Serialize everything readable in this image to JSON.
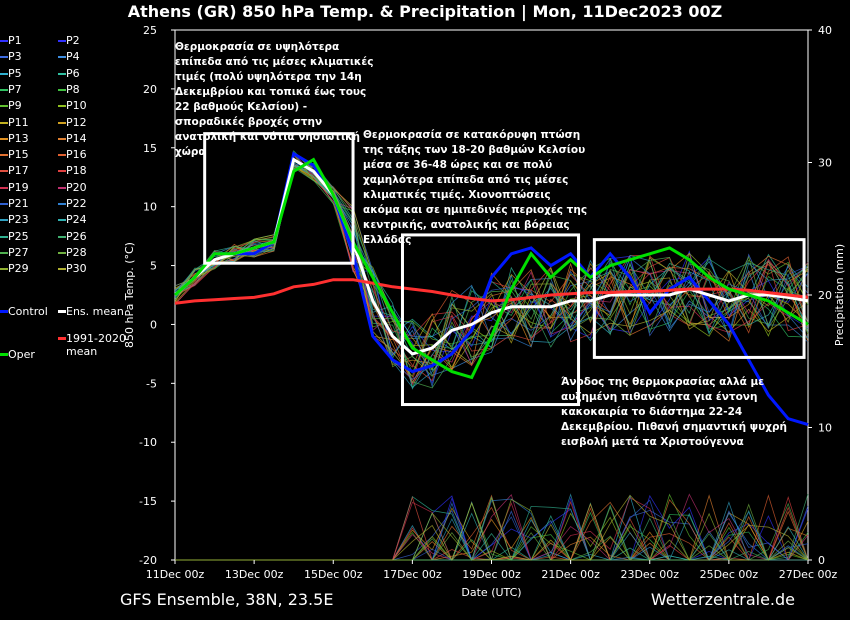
{
  "title": "Athens  (GR)  850 hPa Temp. & Precipitation | Mon, 11Dec2023 00Z",
  "footer_left": "GFS Ensemble, 38N, 23.5E",
  "footer_right": "Wetterzentrale.de",
  "chart_data": {
    "type": "line",
    "xlabel": "Date (UTC)",
    "ylabel": "850 hPa Temp. (°C)",
    "ylabel_right": "Precipitation (mm)",
    "x_ticks": [
      "11Dec 00z",
      "13Dec 00z",
      "15Dec 00z",
      "17Dec 00z",
      "19Dec 00z",
      "21Dec 00z",
      "23Dec 00z",
      "25Dec 00z",
      "27Dec 00z"
    ],
    "x_range_days": [
      0,
      16
    ],
    "ylim": [
      -20,
      25
    ],
    "y_ticks": [
      -20,
      -15,
      -10,
      -5,
      0,
      5,
      10,
      15,
      20,
      25
    ],
    "y2lim": [
      0,
      40
    ],
    "y2_ticks": [
      0,
      10,
      20,
      30,
      40
    ],
    "x_days": [
      0,
      0.5,
      1,
      1.5,
      2,
      2.5,
      3,
      3.5,
      4,
      4.5,
      5,
      5.5,
      6,
      6.5,
      7,
      7.5,
      8,
      8.5,
      9,
      9.5,
      10,
      10.5,
      11,
      11.5,
      12,
      12.5,
      13,
      13.5,
      14,
      14.5,
      15,
      15.5,
      16
    ],
    "series": [
      {
        "name": "Control",
        "color": "#0018ff",
        "values": [
          2.5,
          4,
          6,
          6,
          6,
          7,
          14.5,
          13.5,
          11,
          6,
          -1,
          -3,
          -4,
          -3.5,
          -2.5,
          -0.5,
          4,
          6,
          6.5,
          5,
          6,
          4,
          6,
          4,
          1,
          3,
          4,
          2,
          0,
          -3,
          -6,
          -8,
          -8.5
        ]
      },
      {
        "name": "Ens. mean",
        "color": "#ffffff",
        "values": [
          2.5,
          4,
          5.5,
          6,
          6.5,
          7,
          14,
          13,
          11,
          7,
          2,
          -1,
          -2.5,
          -2,
          -0.5,
          0,
          1,
          1.5,
          1.5,
          1.5,
          2,
          2,
          2.5,
          2.5,
          2.5,
          2.5,
          3,
          2.5,
          2,
          2.5,
          2.5,
          2.3,
          2
        ]
      },
      {
        "name": "1991-2020 mean",
        "color": "#ff3030",
        "values": [
          1.8,
          2,
          2.1,
          2.2,
          2.3,
          2.6,
          3.2,
          3.4,
          3.8,
          3.8,
          3.5,
          3.2,
          3,
          2.8,
          2.5,
          2.2,
          2,
          2.1,
          2.3,
          2.5,
          2.6,
          2.7,
          2.7,
          2.8,
          2.8,
          2.9,
          3,
          3,
          3,
          2.9,
          2.7,
          2.5,
          2.3
        ]
      },
      {
        "name": "Oper",
        "color": "#00e000",
        "values": [
          2.5,
          4,
          6,
          6,
          6.5,
          7,
          13,
          14,
          11,
          7,
          4,
          1,
          -2,
          -3,
          -4,
          -4.5,
          -1,
          3,
          6,
          4,
          5.5,
          4,
          5,
          5.5,
          6,
          6.5,
          5.5,
          4,
          3,
          2.5,
          2,
          1,
          0
        ]
      }
    ],
    "annotations": [
      {
        "text": "Θερμοκρασία σε υψηλότερα επίπεδα από τις μέσες κλιματικές τιμές (πολύ υψηλότερα την 14η Δεκεμβρίου και τοπικά έως τους 22 βαθμούς Κελσίου) - σποραδικές βροχές στην ανατολική και νότια νησιωτική χώρα"
      },
      {
        "text": "Θερμοκρασία σε κατακόρυφη πτώση της τάξης των 18-20 βαθμών Κελσίου μέσα σε 36-48 ώρες και σε πολύ χαμηλότερα επίπεδα από τις μέσες κλιματικές τιμές. Χιονοπτώσεις ακόμα και σε ημιπεδινές περιοχές της κεντρικής, ανατολικής και βόρειας Ελλάδας"
      },
      {
        "text": "Άνοδος της θερμοκρασίας αλλά με αυξημένη πιθανότητα για έντονη κακοκαιρία το διάστημα 22-24 Δεκεμβρίου. Πιθανή σημαντική ψυχρή εισβολή μετά τα Χριστούγεννα"
      }
    ],
    "highlight_boxes": [
      {
        "x0": 0.75,
        "x1": 4.5,
        "y0": 5.2,
        "y1": 16.2
      },
      {
        "x0": 5.75,
        "x1": 10.2,
        "y0": -6.8,
        "y1": 7.6
      },
      {
        "x0": 10.6,
        "x1": 15.9,
        "y0": -2.8,
        "y1": 7.2
      }
    ]
  },
  "legend": {
    "members": [
      {
        "label": "P1",
        "color": "#3030ff"
      },
      {
        "label": "P2",
        "color": "#3030ff"
      },
      {
        "label": "P3",
        "color": "#3d6be0"
      },
      {
        "label": "P4",
        "color": "#3d8de0"
      },
      {
        "label": "P5",
        "color": "#30b0d0"
      },
      {
        "label": "P6",
        "color": "#30c0a0"
      },
      {
        "label": "P7",
        "color": "#30c060"
      },
      {
        "label": "P8",
        "color": "#40c040"
      },
      {
        "label": "P9",
        "color": "#60c030"
      },
      {
        "label": "P10",
        "color": "#90c020"
      },
      {
        "label": "P11",
        "color": "#c0b020"
      },
      {
        "label": "P12",
        "color": "#d0a020"
      },
      {
        "label": "P13",
        "color": "#e09020"
      },
      {
        "label": "P14",
        "color": "#e08030"
      },
      {
        "label": "P15",
        "color": "#e07030"
      },
      {
        "label": "P16",
        "color": "#e06030"
      },
      {
        "label": "P17",
        "color": "#e05040"
      },
      {
        "label": "P18",
        "color": "#e04040"
      },
      {
        "label": "P19",
        "color": "#d03050"
      },
      {
        "label": "P20",
        "color": "#c03070"
      },
      {
        "label": "P21",
        "color": "#3060d0"
      },
      {
        "label": "P22",
        "color": "#3080d0"
      },
      {
        "label": "P23",
        "color": "#30a0c0"
      },
      {
        "label": "P24",
        "color": "#30b0b0"
      },
      {
        "label": "P25",
        "color": "#30b090"
      },
      {
        "label": "P26",
        "color": "#40b070"
      },
      {
        "label": "P27",
        "color": "#50b050"
      },
      {
        "label": "P28",
        "color": "#70b040"
      },
      {
        "label": "P29",
        "color": "#90b030"
      },
      {
        "label": "P30",
        "color": "#b0b030"
      }
    ],
    "control_label": "Control",
    "mean_label": "Ens. mean",
    "clim_label": "1991-2020\nmean",
    "oper_label": "Oper"
  }
}
